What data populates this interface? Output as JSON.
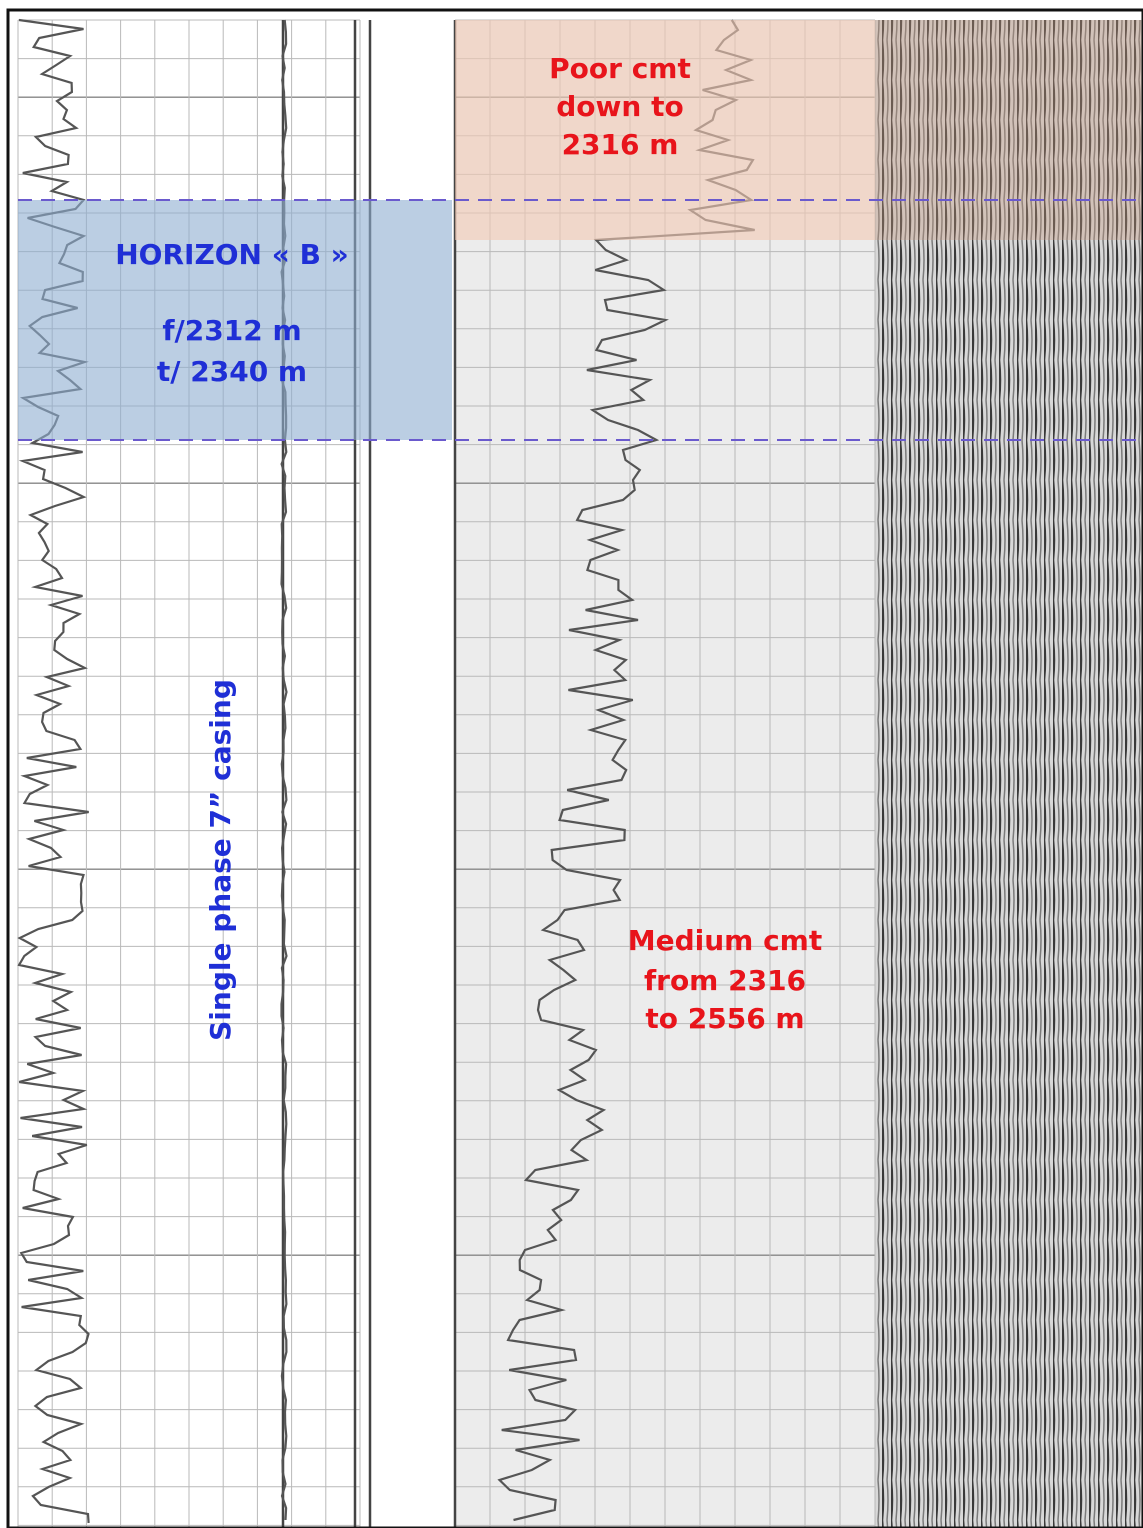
{
  "annotations": {
    "poor_cement": {
      "lines": [
        "Poor cmt",
        "down to",
        "2316 m"
      ]
    },
    "horizon": {
      "title": "HORIZON « B »",
      "from": "f/2312 m",
      "to": "t/ 2340 m"
    },
    "casing": "Single phase 7” casing",
    "medium_cement": {
      "lines": [
        "Medium cmt",
        "from 2316",
        "to 2556 m"
      ]
    }
  }
}
